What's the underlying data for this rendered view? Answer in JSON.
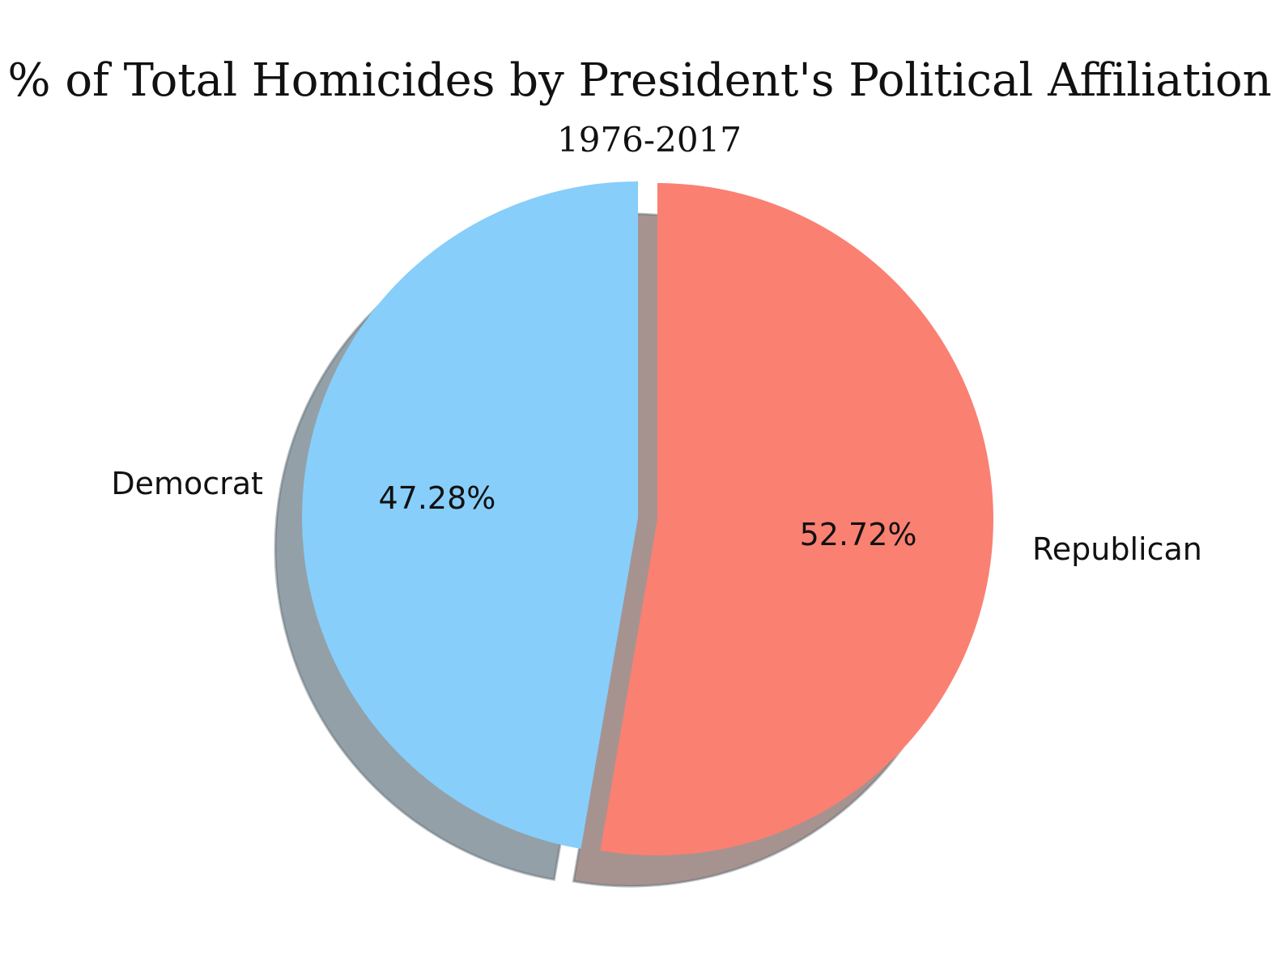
{
  "chart_data": {
    "type": "pie",
    "title": "% of Total Homicides by President's Political Affiliation",
    "subtitle": "1976-2017",
    "slices": [
      {
        "label": "Democrat",
        "value": 47.28,
        "pct_label": "47.28%",
        "color": "#87CEFA"
      },
      {
        "label": "Republican",
        "value": 52.72,
        "pct_label": "52.72%",
        "color": "#FA8072"
      }
    ],
    "shadow": true,
    "exploded": true,
    "start_angle": "top"
  }
}
